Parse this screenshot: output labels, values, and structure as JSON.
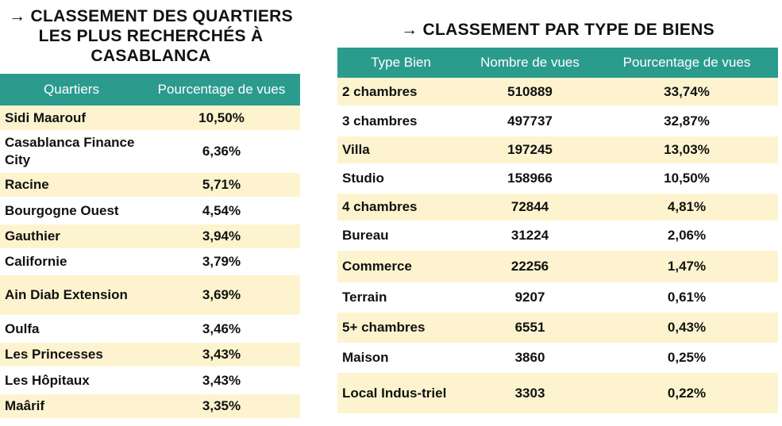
{
  "left": {
    "title_lines": [
      "→ CLASSEMENT DES QUARTIERS",
      "LES PLUS RECHERCHÉS À",
      "CASABLANCA"
    ],
    "headers": [
      "Quartiers",
      "Pourcentage de vues"
    ],
    "rows": [
      [
        "Sidi Maarouf",
        "10,50%"
      ],
      [
        "Casablanca Finance City",
        "6,36%"
      ],
      [
        "Racine",
        "5,71%"
      ],
      [
        "Bourgogne Ouest",
        "4,54%"
      ],
      [
        "Gauthier",
        "3,94%"
      ],
      [
        "Californie",
        "3,79%"
      ],
      [
        "Ain Diab Extension",
        "3,69%"
      ],
      [
        "Oulfa",
        "3,46%"
      ],
      [
        "Les Princesses",
        "3,43%"
      ],
      [
        "Les Hôpitaux",
        "3,43%"
      ],
      [
        "Maârif",
        "3,35%"
      ]
    ]
  },
  "right": {
    "title": "→ CLASSEMENT PAR TYPE DE BIENS",
    "headers": [
      "Type Bien",
      "Nombre de vues",
      "Pourcentage de vues"
    ],
    "rows": [
      [
        "2 chambres",
        "510889",
        "33,74%"
      ],
      [
        "3 chambres",
        "497737",
        "32,87%"
      ],
      [
        "Villa",
        "197245",
        "13,03%"
      ],
      [
        "Studio",
        "158966",
        "10,50%"
      ],
      [
        "4 chambres",
        "72844",
        "4,81%"
      ],
      [
        "Bureau",
        "31224",
        "2,06%"
      ],
      [
        "Commerce",
        "22256",
        "1,47%"
      ],
      [
        "Terrain",
        "9207",
        "0,61%"
      ],
      [
        "5+ chambres",
        "6551",
        "0,43%"
      ],
      [
        "Maison",
        "3860",
        "0,25%"
      ],
      [
        "Local Indus-triel",
        "3303",
        "0,22%"
      ]
    ]
  },
  "colors": {
    "header_bg": "#2b9b8e",
    "row_stripe": "#fdf4cf",
    "header_text": "#ffffff"
  }
}
